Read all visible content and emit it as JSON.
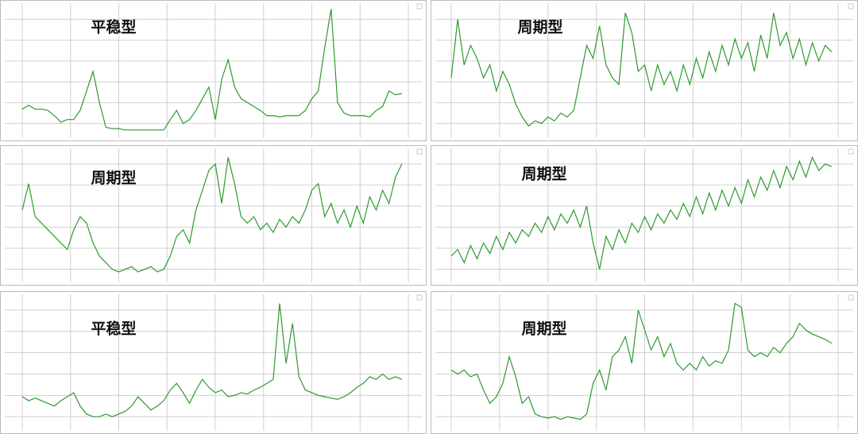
{
  "chart_data": [
    {
      "type": "line",
      "title": "平稳型",
      "color": "#2e9a2e",
      "grid": true,
      "xlim": [
        0,
        60
      ],
      "xticks": [
        0,
        7.5,
        15,
        22.5,
        30,
        37.5,
        45,
        52.5,
        60
      ],
      "ylim": [
        0,
        100
      ],
      "yticks": [
        10,
        26,
        42,
        58,
        74,
        90
      ],
      "values": [
        21,
        24,
        21,
        21,
        20,
        16,
        11,
        13,
        13,
        20,
        35,
        50,
        26,
        7,
        6,
        6,
        5,
        5,
        5,
        5,
        5,
        5,
        5,
        13,
        20,
        10,
        13,
        20,
        29,
        38,
        13,
        44,
        59,
        38,
        29,
        26,
        23,
        20,
        16,
        16,
        15,
        16,
        16,
        16,
        20,
        29,
        35,
        68,
        98,
        26,
        18,
        16,
        16,
        16,
        15,
        20,
        23,
        35,
        32,
        33
      ]
    },
    {
      "type": "line",
      "title": "周期型",
      "color": "#2e9a2e",
      "grid": true,
      "xlim": [
        0,
        60
      ],
      "xticks": [
        0,
        7.5,
        15,
        22.5,
        30,
        37.5,
        45,
        52.5,
        60
      ],
      "ylim": [
        0,
        100
      ],
      "yticks": [
        10,
        26,
        42,
        58,
        74,
        90
      ],
      "values": [
        45,
        90,
        55,
        70,
        60,
        45,
        55,
        35,
        50,
        40,
        25,
        15,
        8,
        12,
        10,
        15,
        12,
        18,
        15,
        20,
        45,
        70,
        60,
        85,
        55,
        45,
        40,
        95,
        80,
        50,
        55,
        35,
        55,
        40,
        50,
        35,
        55,
        40,
        60,
        45,
        65,
        50,
        70,
        55,
        75,
        60,
        72,
        50,
        78,
        60,
        95,
        70,
        80,
        60,
        75,
        55,
        72,
        58,
        70,
        65
      ]
    },
    {
      "type": "line",
      "title": "周期型",
      "color": "#2e9a2e",
      "grid": true,
      "xlim": [
        0,
        60
      ],
      "xticks": [
        0,
        7.5,
        15,
        22.5,
        30,
        37.5,
        45,
        52.5,
        60
      ],
      "ylim": [
        0,
        100
      ],
      "yticks": [
        10,
        26,
        42,
        58,
        74,
        90
      ],
      "values": [
        55,
        75,
        50,
        45,
        40,
        35,
        30,
        25,
        40,
        50,
        45,
        30,
        20,
        15,
        10,
        8,
        10,
        12,
        8,
        10,
        12,
        8,
        10,
        20,
        35,
        40,
        30,
        55,
        70,
        85,
        90,
        60,
        95,
        75,
        50,
        45,
        50,
        40,
        45,
        38,
        48,
        42,
        50,
        45,
        55,
        70,
        75,
        50,
        60,
        45,
        55,
        42,
        58,
        45,
        65,
        55,
        70,
        60,
        80,
        90
      ]
    },
    {
      "type": "line",
      "title": "周期型",
      "color": "#2e9a2e",
      "grid": true,
      "xlim": [
        0,
        60
      ],
      "xticks": [
        0,
        7.5,
        15,
        22.5,
        30,
        37.5,
        45,
        52.5,
        60
      ],
      "ylim": [
        0,
        100
      ],
      "yticks": [
        10,
        26,
        42,
        58,
        74,
        90
      ],
      "values": [
        20,
        25,
        15,
        28,
        18,
        30,
        22,
        35,
        25,
        38,
        30,
        40,
        35,
        45,
        38,
        50,
        40,
        52,
        45,
        55,
        42,
        58,
        30,
        10,
        35,
        25,
        40,
        30,
        45,
        38,
        50,
        40,
        52,
        45,
        55,
        48,
        60,
        50,
        65,
        52,
        68,
        55,
        70,
        58,
        72,
        60,
        78,
        65,
        80,
        70,
        85,
        72,
        88,
        78,
        92,
        80,
        95,
        85,
        90,
        88
      ]
    },
    {
      "type": "line",
      "title": "平稳型",
      "color": "#2e9a2e",
      "grid": true,
      "xlim": [
        0,
        60
      ],
      "xticks": [
        0,
        7.5,
        15,
        22.5,
        30,
        37.5,
        45,
        52.5,
        60
      ],
      "ylim": [
        0,
        100
      ],
      "yticks": [
        10,
        26,
        42,
        58,
        74,
        90
      ],
      "values": [
        25,
        22,
        24,
        22,
        20,
        18,
        22,
        25,
        28,
        18,
        12,
        10,
        10,
        12,
        10,
        12,
        14,
        18,
        25,
        20,
        15,
        18,
        22,
        30,
        35,
        28,
        20,
        30,
        38,
        32,
        28,
        30,
        25,
        26,
        28,
        27,
        30,
        32,
        35,
        38,
        95,
        50,
        80,
        40,
        30,
        28,
        26,
        25,
        24,
        23,
        25,
        28,
        32,
        35,
        40,
        38,
        42,
        38,
        40,
        38
      ]
    },
    {
      "type": "line",
      "title": "周期型",
      "color": "#2e9a2e",
      "grid": true,
      "xlim": [
        0,
        60
      ],
      "xticks": [
        0,
        7.5,
        15,
        22.5,
        30,
        37.5,
        45,
        52.5,
        60
      ],
      "ylim": [
        0,
        100
      ],
      "yticks": [
        10,
        26,
        42,
        58,
        74,
        90
      ],
      "values": [
        45,
        42,
        45,
        40,
        42,
        30,
        20,
        25,
        35,
        55,
        40,
        20,
        25,
        12,
        10,
        9,
        10,
        8,
        10,
        9,
        8,
        12,
        35,
        45,
        30,
        55,
        60,
        70,
        50,
        90,
        75,
        60,
        70,
        55,
        65,
        50,
        45,
        50,
        45,
        55,
        48,
        52,
        50,
        60,
        95,
        92,
        60,
        55,
        58,
        55,
        62,
        58,
        65,
        70,
        80,
        75,
        72,
        70,
        68,
        65
      ]
    }
  ]
}
